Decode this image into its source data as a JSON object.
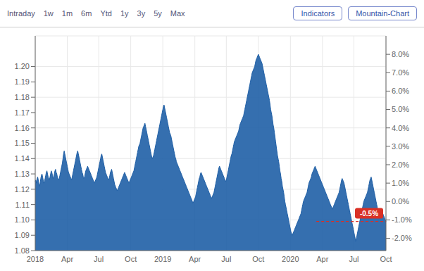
{
  "chart_data": {
    "type": "area",
    "tabs": [
      "Intraday",
      "1w",
      "1m",
      "6m",
      "Ytd",
      "1y",
      "3y",
      "5y",
      "Max"
    ],
    "buttons": [
      "Indicators",
      "Mountain-Chart"
    ],
    "color": "#1f5fa6",
    "grid": true,
    "ylim": [
      1.08,
      1.22
    ],
    "yticks": [
      1.08,
      1.09,
      {
        "value": 1.1,
        "label": "1.10"
      },
      1.11,
      1.12,
      1.13,
      1.14,
      1.15,
      1.16,
      1.17,
      1.18,
      1.19,
      {
        "value": 1.2,
        "label": "1.20"
      }
    ],
    "y2lim": [
      -2.667,
      9.0
    ],
    "y2ticks": [
      {
        "value": -2.0,
        "label": "-2.0%"
      },
      {
        "value": -1.0,
        "label": "-1.0%"
      },
      {
        "value": 0.0,
        "label": "0.0%"
      },
      {
        "value": 1.0,
        "label": "1.0%"
      },
      {
        "value": 2.0,
        "label": "2.0%"
      },
      {
        "value": 3.0,
        "label": "3.0%"
      },
      {
        "value": 4.0,
        "label": "4.0%"
      },
      {
        "value": 5.0,
        "label": "5.0%"
      },
      {
        "value": 6.0,
        "label": "6.0%"
      },
      {
        "value": 7.0,
        "label": "7.0%"
      },
      {
        "value": 8.0,
        "label": "8.0%"
      }
    ],
    "annotations": [
      {
        "text": "-0.5%",
        "color": "#d93025"
      }
    ],
    "categories": [
      "2018",
      null,
      null,
      null,
      null,
      null,
      null,
      null,
      null,
      null,
      null,
      null,
      null,
      null,
      null,
      null,
      null,
      null,
      null,
      null,
      null,
      null,
      null,
      null,
      null,
      null,
      null,
      null,
      null,
      null,
      null,
      null,
      null,
      null,
      null,
      null,
      null,
      null,
      null,
      null,
      null,
      null,
      null,
      null,
      null,
      null,
      null,
      null,
      null,
      null,
      null,
      null,
      "Apr",
      null,
      null,
      null,
      null,
      null,
      null,
      null,
      null,
      null,
      null,
      null,
      null,
      null,
      null,
      null,
      null,
      null,
      null,
      null,
      null,
      null,
      null,
      null,
      null,
      null,
      null,
      null,
      null,
      null,
      null,
      null,
      null,
      null,
      null,
      null,
      null,
      null,
      null,
      null,
      null,
      null,
      null,
      null,
      null,
      null,
      null,
      null,
      null,
      null,
      null,
      "Jul",
      null,
      null,
      null,
      null,
      null,
      null,
      null,
      null,
      null,
      null,
      null,
      null,
      null,
      null,
      null,
      null,
      null,
      null,
      null,
      null,
      null,
      null,
      null,
      null,
      null,
      null,
      null,
      null,
      null,
      null,
      null,
      null,
      null,
      null,
      null,
      null,
      null,
      null,
      null,
      null,
      null,
      null,
      null,
      null,
      null,
      null,
      null,
      null,
      null,
      null,
      null,
      "Oct",
      null,
      null,
      null,
      null,
      null,
      null,
      null,
      null,
      null,
      null,
      null,
      null,
      null,
      null,
      null,
      null,
      null,
      null,
      null,
      null,
      null,
      null,
      null,
      null,
      null,
      null,
      null,
      null,
      null,
      null,
      null,
      null,
      null,
      null,
      null,
      null,
      null,
      null,
      null,
      null,
      null,
      null,
      null,
      null,
      null,
      null,
      null,
      null,
      null,
      null,
      null,
      "2019",
      null,
      null,
      null,
      null,
      null,
      null,
      null,
      null,
      null,
      null,
      null,
      null,
      null,
      null,
      null,
      null,
      null,
      null,
      null,
      null,
      null,
      null,
      null,
      null,
      null,
      null,
      null,
      null,
      null,
      null,
      null,
      null,
      null,
      null,
      null,
      null,
      null,
      null,
      null,
      null,
      null,
      null,
      null,
      null,
      null,
      null,
      null,
      null,
      null,
      null,
      null,
      "Apr",
      null,
      null,
      null,
      null,
      null,
      null,
      null,
      null,
      null,
      null,
      null,
      null,
      null,
      null,
      null,
      null,
      null,
      null,
      null,
      null,
      null,
      null,
      null,
      null,
      null,
      null,
      null,
      null,
      null,
      null,
      null,
      null,
      null,
      null,
      null,
      null,
      null,
      null,
      null,
      null,
      null,
      null,
      null,
      null,
      null,
      null,
      null,
      null,
      null,
      null,
      "Jul",
      null,
      null,
      null,
      null,
      null,
      null,
      null,
      null,
      null,
      null,
      null,
      null,
      null,
      null,
      null,
      null,
      null,
      null,
      null,
      null,
      null,
      null,
      null,
      null,
      null,
      null,
      null,
      null,
      null,
      null,
      null,
      null,
      null,
      null,
      null,
      null,
      null,
      null,
      null,
      null,
      null,
      null,
      null,
      null,
      null,
      null,
      null,
      null,
      null,
      null,
      null,
      "Oct",
      null,
      null,
      null,
      null,
      null,
      null,
      null,
      null,
      null,
      null,
      null,
      null,
      null,
      null,
      null,
      null,
      null,
      null,
      null,
      null,
      null,
      null,
      null,
      null,
      null,
      null,
      null,
      null,
      null,
      null,
      null,
      null,
      null,
      null,
      null,
      null,
      null,
      null,
      null,
      null,
      null,
      null,
      null,
      null,
      null,
      null,
      null,
      null,
      null,
      null,
      null,
      "2020",
      null,
      null,
      null,
      null,
      null,
      null,
      null,
      null,
      null,
      null,
      null,
      null,
      null,
      null,
      null,
      null,
      null,
      null,
      null,
      null,
      null,
      null,
      null,
      null,
      null,
      null,
      null,
      null,
      null,
      null,
      null,
      null,
      null,
      null,
      null,
      null,
      null,
      null,
      null,
      null,
      null,
      null,
      null,
      null,
      null,
      null,
      null,
      null,
      null,
      null,
      null,
      "Apr",
      null,
      null,
      null,
      null,
      null,
      null,
      null,
      null,
      null,
      null,
      null,
      null,
      null,
      null,
      null,
      null,
      null,
      null,
      null,
      null,
      null,
      null,
      null,
      null,
      null,
      null,
      null,
      null,
      null,
      null,
      null,
      null,
      null,
      null,
      null,
      null,
      null,
      null,
      null,
      null,
      null,
      null,
      null,
      null,
      null,
      null,
      null,
      null,
      null,
      null,
      "Jul",
      null,
      null,
      null,
      null,
      null,
      null,
      null,
      null,
      null,
      null,
      null,
      null,
      null,
      null,
      null,
      null,
      null,
      null,
      null,
      null,
      null,
      null,
      null,
      null,
      null,
      null,
      null,
      null,
      null,
      null,
      null,
      null,
      null,
      null,
      null,
      null,
      null,
      null,
      null,
      null,
      null,
      null,
      null,
      null,
      null,
      null,
      null,
      null,
      null,
      null,
      null,
      "Oct"
    ],
    "values": [
      1.125,
      1.126,
      1.124,
      1.127,
      1.128,
      1.126,
      1.123,
      1.122,
      1.124,
      1.127,
      1.129,
      1.13,
      1.128,
      1.126,
      1.124,
      1.125,
      1.127,
      1.129,
      1.131,
      1.132,
      1.13,
      1.128,
      1.127,
      1.126,
      1.128,
      1.13,
      1.132,
      1.131,
      1.129,
      1.127,
      1.128,
      1.13,
      1.132,
      1.133,
      1.131,
      1.13,
      1.128,
      1.127,
      1.126,
      1.127,
      1.129,
      1.131,
      1.133,
      1.135,
      1.137,
      1.14,
      1.143,
      1.145,
      1.143,
      1.141,
      1.139,
      1.137,
      1.135,
      1.133,
      1.131,
      1.13,
      1.129,
      1.128,
      1.127,
      1.126,
      1.128,
      1.13,
      1.132,
      1.134,
      1.136,
      1.138,
      1.14,
      1.142,
      1.144,
      1.145,
      1.143,
      1.141,
      1.139,
      1.137,
      1.135,
      1.133,
      1.131,
      1.13,
      1.128,
      1.127,
      1.128,
      1.13,
      1.132,
      1.133,
      1.134,
      1.135,
      1.134,
      1.133,
      1.132,
      1.131,
      1.13,
      1.129,
      1.128,
      1.127,
      1.126,
      1.125,
      1.124,
      1.125,
      1.126,
      1.127,
      1.128,
      1.13,
      1.132,
      1.134,
      1.136,
      1.138,
      1.14,
      1.142,
      1.143,
      1.141,
      1.139,
      1.137,
      1.135,
      1.133,
      1.131,
      1.13,
      1.129,
      1.128,
      1.127,
      1.126,
      1.127,
      1.129,
      1.131,
      1.132,
      1.133,
      1.131,
      1.129,
      1.127,
      1.125,
      1.123,
      1.122,
      1.121,
      1.12,
      1.119,
      1.12,
      1.121,
      1.122,
      1.123,
      1.124,
      1.125,
      1.126,
      1.127,
      1.128,
      1.129,
      1.13,
      1.131,
      1.13,
      1.129,
      1.128,
      1.127,
      1.126,
      1.125,
      1.124,
      1.125,
      1.126,
      1.127,
      1.128,
      1.129,
      1.13,
      1.131,
      1.132,
      1.134,
      1.136,
      1.138,
      1.14,
      1.142,
      1.144,
      1.146,
      1.148,
      1.149,
      1.15,
      1.152,
      1.154,
      1.156,
      1.158,
      1.16,
      1.161,
      1.162,
      1.163,
      1.161,
      1.159,
      1.157,
      1.155,
      1.153,
      1.151,
      1.149,
      1.147,
      1.145,
      1.143,
      1.141,
      1.14,
      1.141,
      1.142,
      1.144,
      1.146,
      1.148,
      1.15,
      1.152,
      1.154,
      1.156,
      1.158,
      1.16,
      1.162,
      1.164,
      1.166,
      1.168,
      1.17,
      1.172,
      1.174,
      1.175,
      1.173,
      1.171,
      1.169,
      1.167,
      1.165,
      1.163,
      1.161,
      1.159,
      1.157,
      1.156,
      1.155,
      1.153,
      1.151,
      1.149,
      1.147,
      1.145,
      1.143,
      1.141,
      1.14,
      1.138,
      1.137,
      1.136,
      1.135,
      1.134,
      1.133,
      1.132,
      1.131,
      1.13,
      1.129,
      1.128,
      1.127,
      1.126,
      1.125,
      1.124,
      1.123,
      1.122,
      1.121,
      1.12,
      1.119,
      1.118,
      1.117,
      1.116,
      1.115,
      1.114,
      1.113,
      1.112,
      1.111,
      1.112,
      1.113,
      1.114,
      1.115,
      1.117,
      1.119,
      1.121,
      1.123,
      1.125,
      1.127,
      1.128,
      1.13,
      1.131,
      1.13,
      1.129,
      1.128,
      1.127,
      1.126,
      1.125,
      1.124,
      1.123,
      1.122,
      1.121,
      1.12,
      1.119,
      1.118,
      1.117,
      1.116,
      1.115,
      1.114,
      1.115,
      1.116,
      1.117,
      1.118,
      1.12,
      1.122,
      1.124,
      1.126,
      1.128,
      1.13,
      1.132,
      1.134,
      1.135,
      1.134,
      1.133,
      1.132,
      1.131,
      1.13,
      1.129,
      1.128,
      1.127,
      1.126,
      1.125,
      1.126,
      1.128,
      1.13,
      1.132,
      1.134,
      1.136,
      1.138,
      1.14,
      1.142,
      1.143,
      1.145,
      1.147,
      1.149,
      1.151,
      1.152,
      1.153,
      1.154,
      1.155,
      1.156,
      1.157,
      1.158,
      1.16,
      1.162,
      1.163,
      1.164,
      1.165,
      1.166,
      1.167,
      1.168,
      1.17,
      1.172,
      1.174,
      1.176,
      1.178,
      1.18,
      1.182,
      1.184,
      1.186,
      1.188,
      1.19,
      1.192,
      1.194,
      1.196,
      1.197,
      1.198,
      1.199,
      1.2,
      1.202,
      1.204,
      1.205,
      1.206,
      1.207,
      1.208,
      1.207,
      1.206,
      1.205,
      1.204,
      1.203,
      1.202,
      1.2,
      1.198,
      1.196,
      1.194,
      1.192,
      1.19,
      1.188,
      1.186,
      1.184,
      1.182,
      1.18,
      1.178,
      1.175,
      1.172,
      1.17,
      1.168,
      1.165,
      1.162,
      1.16,
      1.157,
      1.154,
      1.151,
      1.148,
      1.145,
      1.142,
      1.14,
      1.138,
      1.135,
      1.132,
      1.13,
      1.127,
      1.125,
      1.122,
      1.12,
      1.118,
      1.115,
      1.112,
      1.11,
      1.108,
      1.106,
      1.104,
      1.102,
      1.1,
      1.098,
      1.096,
      1.094,
      1.092,
      1.091,
      1.09,
      1.091,
      1.092,
      1.093,
      1.094,
      1.095,
      1.096,
      1.097,
      1.098,
      1.099,
      1.1,
      1.101,
      1.102,
      1.103,
      1.104,
      1.106,
      1.108,
      1.11,
      1.112,
      1.113,
      1.114,
      1.115,
      1.116,
      1.117,
      1.118,
      1.12,
      1.122,
      1.124,
      1.125,
      1.126,
      1.127,
      1.128,
      1.13,
      1.131,
      1.132,
      1.133,
      1.134,
      1.135,
      1.134,
      1.133,
      1.132,
      1.131,
      1.13,
      1.129,
      1.128,
      1.127,
      1.126,
      1.125,
      1.124,
      1.123,
      1.122,
      1.121,
      1.12,
      1.119,
      1.118,
      1.117,
      1.116,
      1.115,
      1.114,
      1.113,
      1.112,
      1.111,
      1.11,
      1.109,
      1.108,
      1.107,
      1.108,
      1.109,
      1.11,
      1.111,
      1.112,
      1.113,
      1.114,
      1.115,
      1.116,
      1.117,
      1.118,
      1.12,
      1.122,
      1.124,
      1.126,
      1.127,
      1.126,
      1.125,
      1.124,
      1.122,
      1.12,
      1.118,
      1.116,
      1.114,
      1.112,
      1.11,
      1.108,
      1.106,
      1.104,
      1.102,
      1.1,
      1.098,
      1.096,
      1.094,
      1.092,
      1.09,
      1.088,
      1.086,
      1.088,
      1.09,
      1.092,
      1.094,
      1.096,
      1.098,
      1.1,
      1.102,
      1.104,
      1.106,
      1.108,
      1.11,
      1.112,
      1.113,
      1.114,
      1.115,
      1.116,
      1.117,
      1.118,
      1.12,
      1.122,
      1.124,
      1.126,
      1.127,
      1.128,
      1.126,
      1.124,
      1.122,
      1.12,
      1.118,
      1.116,
      1.114,
      1.112,
      1.11,
      1.108,
      1.106,
      1.104,
      1.102,
      1.101,
      1.102,
      1.103,
      1.104,
      1.105,
      1.104,
      1.103,
      1.102,
      1.101,
      1.1,
      1.099
    ]
  }
}
